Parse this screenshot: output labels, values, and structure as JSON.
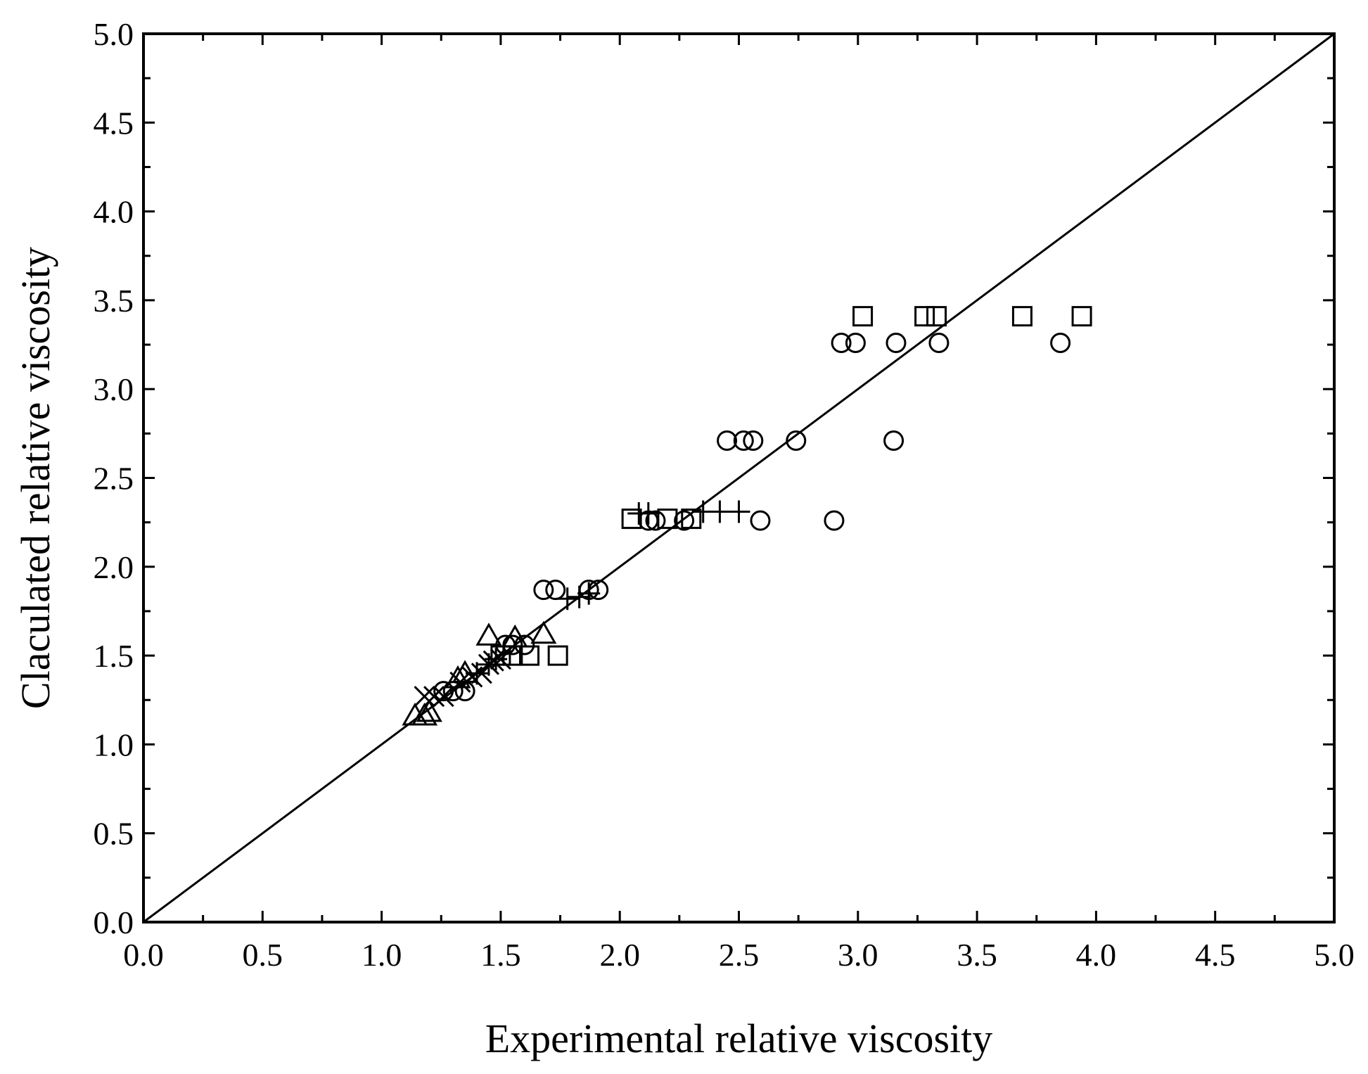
{
  "chart_data": {
    "type": "scatter",
    "title": "",
    "xlabel": "Experimental relative viscosity",
    "ylabel": "Claculated relative viscosity",
    "xlim": [
      0.0,
      5.0
    ],
    "ylim": [
      0.0,
      5.0
    ],
    "xticks": [
      "0.0",
      "0.5",
      "1.0",
      "1.5",
      "2.0",
      "2.5",
      "3.0",
      "3.5",
      "4.0",
      "4.5",
      "5.0"
    ],
    "yticks": [
      "0.0",
      "0.5",
      "1.0",
      "1.5",
      "2.0",
      "2.5",
      "3.0",
      "3.5",
      "4.0",
      "4.5",
      "5.0"
    ],
    "grid": false,
    "reference_line": {
      "x": [
        0.0,
        5.0
      ],
      "y": [
        0.0,
        5.0
      ]
    },
    "series": [
      {
        "name": "square",
        "marker": "square",
        "x": [
          2.05,
          2.2,
          2.3,
          1.5,
          1.55,
          1.62,
          1.74,
          3.02,
          3.28,
          3.33,
          3.69,
          3.94
        ],
        "y": [
          2.27,
          2.27,
          2.27,
          1.5,
          1.5,
          1.5,
          1.5,
          3.41,
          3.41,
          3.41,
          3.41,
          3.41
        ]
      },
      {
        "name": "circle",
        "marker": "circle",
        "x": [
          1.26,
          1.3,
          1.35,
          1.52,
          1.55,
          1.6,
          1.68,
          1.73,
          1.87,
          1.91,
          2.12,
          2.15,
          2.27,
          2.59,
          2.9,
          2.45,
          2.52,
          2.56,
          2.74,
          3.15,
          2.93,
          2.99,
          3.16,
          3.34,
          3.85
        ],
        "y": [
          1.3,
          1.3,
          1.3,
          1.56,
          1.56,
          1.56,
          1.87,
          1.87,
          1.87,
          1.87,
          2.26,
          2.26,
          2.26,
          2.26,
          2.26,
          2.71,
          2.71,
          2.71,
          2.71,
          2.71,
          3.26,
          3.26,
          3.26,
          3.26,
          3.26
        ]
      },
      {
        "name": "triangle",
        "marker": "triangle",
        "x": [
          1.14,
          1.18,
          1.2,
          1.32,
          1.35,
          1.45,
          1.56,
          1.68
        ],
        "y": [
          1.16,
          1.16,
          1.18,
          1.37,
          1.4,
          1.61,
          1.6,
          1.62
        ]
      },
      {
        "name": "plus",
        "marker": "plus",
        "x": [
          1.4,
          1.45,
          1.48,
          1.78,
          1.83,
          1.87,
          2.08,
          2.12,
          2.35,
          2.42,
          2.5
        ],
        "y": [
          1.4,
          1.45,
          1.48,
          1.82,
          1.83,
          1.85,
          2.3,
          2.3,
          2.31,
          2.31,
          2.31
        ]
      },
      {
        "name": "cross",
        "marker": "cross",
        "x": [
          1.18,
          1.22,
          1.26,
          1.33,
          1.38,
          1.42,
          1.45,
          1.47,
          1.5
        ],
        "y": [
          1.27,
          1.27,
          1.27,
          1.35,
          1.38,
          1.4,
          1.45,
          1.47,
          1.48
        ]
      }
    ]
  }
}
